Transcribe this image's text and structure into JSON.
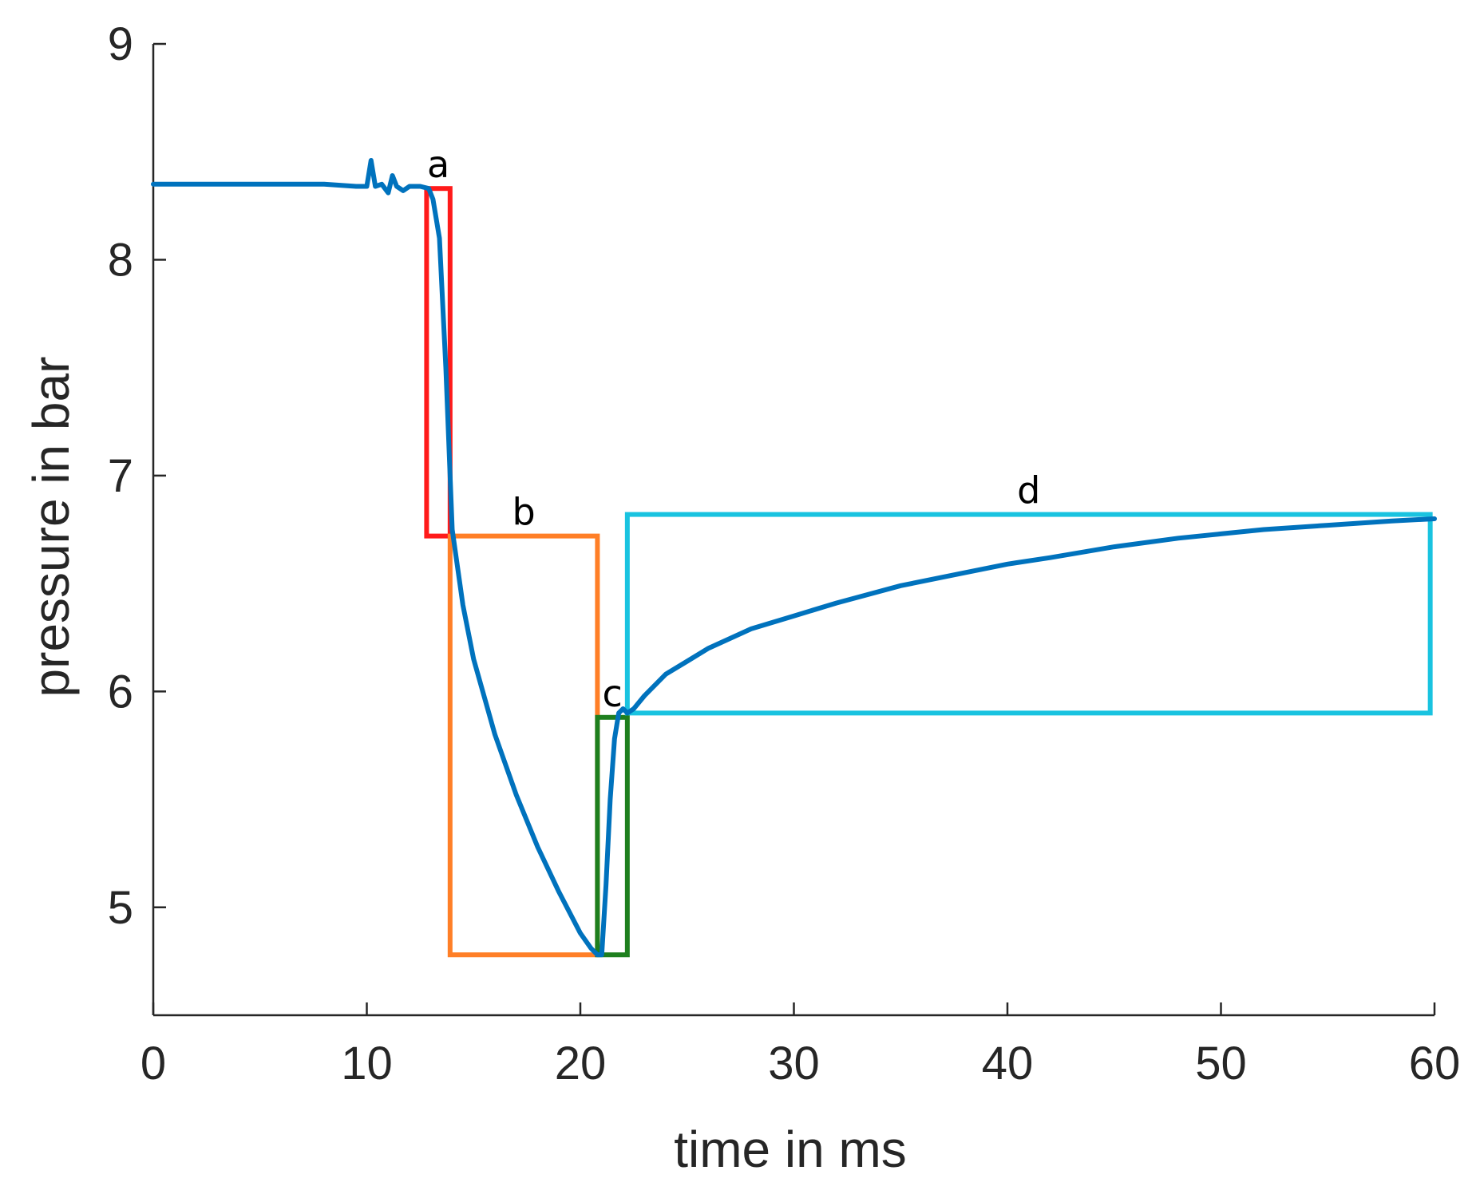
{
  "chart_data": {
    "type": "line",
    "title": "",
    "xlabel": "time in ms",
    "ylabel": "pressure in bar",
    "xlim": [
      0,
      60
    ],
    "ylim": [
      4.5,
      9
    ],
    "xticks": [
      0,
      10,
      20,
      30,
      40,
      50,
      60
    ],
    "yticks": [
      5,
      6,
      7,
      8,
      9
    ],
    "xtick_labels": [
      "0",
      "10",
      "20",
      "30",
      "40",
      "50",
      "60"
    ],
    "ytick_labels": [
      "5",
      "6",
      "7",
      "8",
      "9"
    ],
    "grid": false,
    "series": [
      {
        "name": "pressure",
        "color": "#0072BD",
        "x": [
          0,
          2,
          4,
          6,
          8,
          9.5,
          10,
          10.2,
          10.4,
          10.7,
          11,
          11.2,
          11.4,
          11.7,
          12,
          12.5,
          12.9,
          13.1,
          13.4,
          13.7,
          14,
          14.5,
          15,
          16,
          17,
          18,
          19,
          20,
          20.5,
          20.8,
          21,
          21.2,
          21.4,
          21.6,
          21.8,
          22,
          22.2,
          22.5,
          23,
          24,
          25,
          26,
          28,
          30,
          32,
          35,
          38,
          40,
          42,
          45,
          48,
          50,
          52,
          55,
          58,
          60
        ],
        "y": [
          8.35,
          8.35,
          8.35,
          8.35,
          8.35,
          8.34,
          8.34,
          8.46,
          8.34,
          8.35,
          8.31,
          8.39,
          8.34,
          8.32,
          8.34,
          8.34,
          8.33,
          8.28,
          8.1,
          7.5,
          6.75,
          6.4,
          6.15,
          5.8,
          5.52,
          5.28,
          5.07,
          4.88,
          4.81,
          4.78,
          4.78,
          5.1,
          5.5,
          5.78,
          5.9,
          5.92,
          5.9,
          5.92,
          5.98,
          6.08,
          6.14,
          6.2,
          6.29,
          6.35,
          6.41,
          6.49,
          6.55,
          6.59,
          6.62,
          6.67,
          6.71,
          6.73,
          6.75,
          6.77,
          6.79,
          6.8
        ]
      }
    ],
    "regions": [
      {
        "label": "a",
        "color": "#FF1A1A",
        "x": [
          12.8,
          13.9
        ],
        "y": [
          6.72,
          8.33
        ]
      },
      {
        "label": "b",
        "color": "#FF7F27",
        "x": [
          13.9,
          20.8
        ],
        "y": [
          4.78,
          6.72
        ]
      },
      {
        "label": "c",
        "color": "#1E7F1E",
        "x": [
          20.8,
          22.2
        ],
        "y": [
          4.78,
          5.88
        ]
      },
      {
        "label": "d",
        "color": "#19C3E0",
        "x": [
          22.2,
          59.8
        ],
        "y": [
          5.9,
          6.82
        ]
      }
    ]
  }
}
